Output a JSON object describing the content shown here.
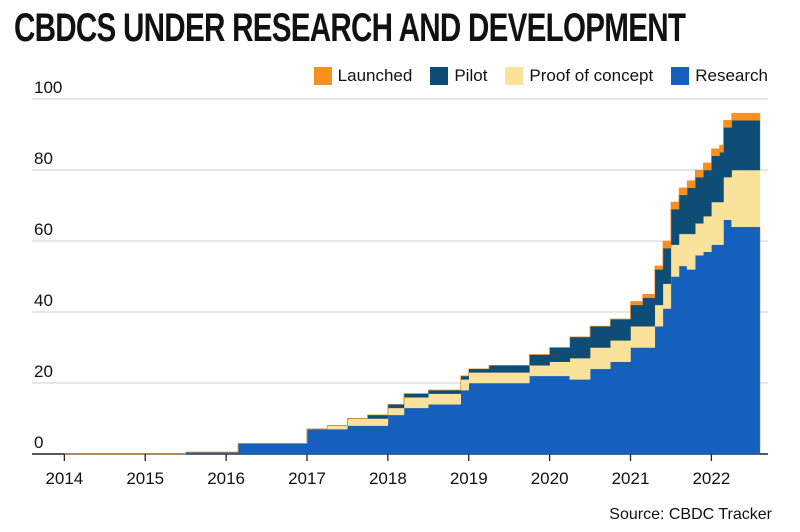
{
  "chart_data": {
    "type": "area",
    "stacked": true,
    "title": "CBDCS UNDER RESEARCH AND DEVELOPMENT",
    "source": "Source: CBDC Tracker",
    "ylim": [
      0,
      100
    ],
    "yticks": [
      0,
      20,
      40,
      60,
      80,
      100
    ],
    "xlim": [
      2013.6,
      2022.7
    ],
    "xticks": [
      "2014",
      "2015",
      "2016",
      "2017",
      "2018",
      "2019",
      "2020",
      "2021",
      "2022"
    ],
    "grid": true,
    "legend_position": "top-right",
    "x": [
      2014.0,
      2015.0,
      2015.5,
      2016.0,
      2016.15,
      2016.5,
      2016.85,
      2017.0,
      2017.25,
      2017.5,
      2017.75,
      2017.9,
      2018.0,
      2018.2,
      2018.5,
      2018.75,
      2018.9,
      2019.0,
      2019.25,
      2019.5,
      2019.75,
      2020.0,
      2020.25,
      2020.5,
      2020.75,
      2021.0,
      2021.15,
      2021.3,
      2021.4,
      2021.5,
      2021.6,
      2021.7,
      2021.8,
      2021.9,
      2022.0,
      2022.1,
      2022.15,
      2022.25,
      2022.5
    ],
    "series": [
      {
        "name": "Research",
        "color": "#1560bd",
        "values": [
          0,
          0,
          0.5,
          0.5,
          3,
          3,
          3,
          7,
          7,
          8,
          8,
          8,
          11,
          13,
          14,
          14,
          18,
          20,
          20,
          20,
          22,
          22,
          21,
          24,
          26,
          30,
          30,
          36,
          41,
          50,
          53,
          52,
          56,
          57,
          59,
          59,
          66,
          64,
          64
        ]
      },
      {
        "name": "Proof of concept",
        "color": "#fbe29a",
        "values": [
          0,
          0,
          0,
          0,
          0,
          0,
          0,
          0,
          1,
          2,
          2,
          2,
          2,
          3,
          3,
          3,
          3,
          3,
          3,
          3,
          3,
          4,
          6,
          6,
          6,
          6,
          6,
          6,
          7,
          9,
          9,
          10,
          9,
          10,
          12,
          12,
          12,
          16,
          16
        ]
      },
      {
        "name": "Pilot",
        "color": "#0e4d75",
        "values": [
          0,
          0,
          0,
          0,
          0,
          0,
          0,
          0,
          0,
          0,
          1,
          1,
          1,
          1,
          1,
          1,
          1,
          1,
          2,
          2,
          3,
          4,
          6,
          6,
          6,
          6,
          8,
          10,
          10,
          10,
          11,
          13,
          13,
          13,
          13,
          14,
          14,
          14,
          14
        ]
      },
      {
        "name": "Launched",
        "color": "#f7901e",
        "values": [
          0,
          0,
          0,
          0,
          0,
          0,
          0,
          0,
          0,
          0,
          0,
          0,
          0,
          0,
          0,
          0,
          0,
          0,
          0,
          0,
          0,
          0,
          0,
          0,
          0,
          1,
          1,
          1,
          2,
          2,
          2,
          2,
          2,
          2,
          2,
          2,
          2,
          2,
          2
        ]
      }
    ],
    "legend_order": [
      "Launched",
      "Pilot",
      "Proof of concept",
      "Research"
    ]
  }
}
